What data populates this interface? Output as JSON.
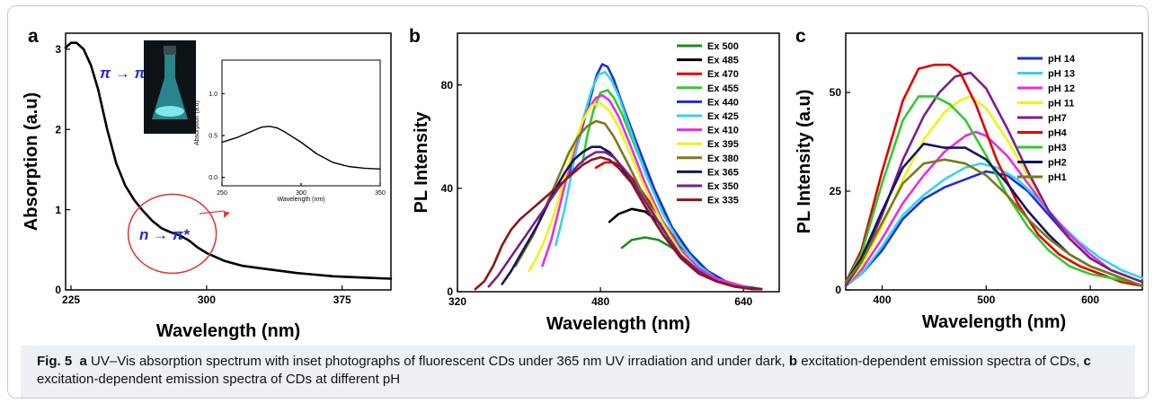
{
  "figure": {
    "caption": {
      "label": "Fig. 5",
      "a_letter": "a",
      "a_text": "UV–Vis absorption spectrum with inset photographs of fluorescent CDs under 365 nm UV irradiation and under dark,",
      "b_letter": "b",
      "b_text": "excitation-dependent emission spectra of CDs,",
      "c_letter": "c",
      "c_text": "excitation-dependent emission spectra of CDs at different pH"
    }
  },
  "chart_data": [
    {
      "panel": "a",
      "type": "line",
      "xlabel": "Wavelength (nm)",
      "ylabel": "Absorption (a.u)",
      "xlim": [
        222,
        402
      ],
      "ylim": [
        0,
        3.2
      ],
      "xticks": [
        225,
        300,
        375
      ],
      "yticks": [
        0,
        1,
        2,
        3
      ],
      "color": "#000000",
      "annotations": [
        "π → π*",
        "n → π*"
      ],
      "annotation_color": "#1f2bd0",
      "highlight_color": "#e23b3b",
      "series": [
        {
          "x": [
            222,
            225,
            228,
            232,
            236,
            240,
            245,
            250,
            255,
            260,
            265,
            270,
            275,
            280,
            285,
            290,
            295,
            300,
            310,
            320,
            330,
            340,
            350,
            360,
            370,
            380,
            390,
            402
          ],
          "y": [
            3.02,
            3.08,
            3.08,
            3.0,
            2.8,
            2.5,
            2.0,
            1.58,
            1.3,
            1.12,
            0.98,
            0.86,
            0.77,
            0.72,
            0.68,
            0.62,
            0.53,
            0.46,
            0.36,
            0.3,
            0.27,
            0.24,
            0.21,
            0.19,
            0.17,
            0.16,
            0.15,
            0.14
          ]
        }
      ],
      "inset": {
        "type": "line",
        "xlabel": "Wavelength (nm)",
        "ylabel": "Absorption (a.u)",
        "xlim": [
          250,
          350
        ],
        "ylim": [
          -0.1,
          1.4
        ],
        "xticks": [
          250,
          300,
          350
        ],
        "yticks": [
          0.0,
          0.5,
          1.0
        ],
        "series": [
          {
            "x": [
              250,
              260,
              270,
              275,
              280,
              285,
              290,
              300,
              310,
              320,
              330,
              340,
              350
            ],
            "y": [
              0.42,
              0.48,
              0.56,
              0.6,
              0.61,
              0.59,
              0.54,
              0.42,
              0.28,
              0.18,
              0.13,
              0.11,
              0.1
            ]
          }
        ]
      }
    },
    {
      "panel": "b",
      "type": "line",
      "xlabel": "Wavelength (nm)",
      "ylabel": "PL Intensity",
      "xlim": [
        320,
        680
      ],
      "ylim": [
        0,
        100
      ],
      "xticks": [
        320,
        480,
        640
      ],
      "yticks": [
        0,
        40,
        80
      ],
      "series": [
        {
          "name": "Ex 500",
          "color": "#1e8c1e",
          "x": [
            504,
            515,
            530,
            545,
            560,
            580,
            600,
            620,
            640,
            660
          ],
          "y": [
            17,
            20,
            21,
            20,
            17,
            12,
            7,
            4,
            2,
            1
          ]
        },
        {
          "name": "Ex 485",
          "color": "#000000",
          "x": [
            490,
            500,
            515,
            530,
            545,
            560,
            580,
            600,
            620,
            640,
            660
          ],
          "y": [
            27,
            30,
            32,
            31,
            27,
            21,
            14,
            8,
            4,
            2,
            1
          ]
        },
        {
          "name": "Ex 470",
          "color": "#e00000",
          "x": [
            475,
            485,
            495,
            505,
            520,
            540,
            560,
            580,
            600,
            620,
            640,
            660
          ],
          "y": [
            48,
            50,
            50,
            48,
            42,
            32,
            22,
            14,
            8,
            4,
            2,
            1
          ]
        },
        {
          "name": "Ex 455",
          "color": "#2ecc2e",
          "x": [
            460,
            465,
            472,
            480,
            488,
            495,
            505,
            520,
            540,
            560,
            580,
            600,
            620,
            640,
            660
          ],
          "y": [
            50,
            60,
            70,
            77,
            78,
            75,
            68,
            55,
            38,
            24,
            14,
            8,
            4,
            2,
            1
          ]
        },
        {
          "name": "Ex 440",
          "color": "#1c2fd6",
          "x": [
            445,
            452,
            460,
            468,
            476,
            482,
            488,
            495,
            505,
            520,
            540,
            560,
            580,
            600,
            620,
            640,
            660
          ],
          "y": [
            46,
            54,
            64,
            74,
            84,
            88,
            87,
            82,
            72,
            58,
            40,
            25,
            15,
            8,
            4,
            2,
            1
          ]
        },
        {
          "name": "Ex 425",
          "color": "#33d6e6",
          "x": [
            430,
            440,
            450,
            460,
            470,
            478,
            485,
            492,
            500,
            512,
            530,
            550,
            570,
            590,
            610,
            630,
            650,
            660
          ],
          "y": [
            18,
            32,
            50,
            66,
            78,
            84,
            85,
            82,
            76,
            64,
            46,
            30,
            18,
            10,
            5,
            3,
            1,
            1
          ]
        },
        {
          "name": "Ex 410",
          "color": "#e62ee0",
          "x": [
            415,
            425,
            435,
            445,
            455,
            465,
            475,
            482,
            490,
            500,
            512,
            530,
            550,
            570,
            590,
            610,
            630,
            650,
            660
          ],
          "y": [
            10,
            20,
            34,
            48,
            60,
            70,
            75,
            76,
            74,
            68,
            58,
            42,
            27,
            16,
            9,
            5,
            3,
            1,
            1
          ]
        },
        {
          "name": "Ex 395",
          "color": "#f2f214",
          "x": [
            400,
            410,
            420,
            430,
            440,
            450,
            460,
            470,
            480,
            490,
            500,
            515,
            530,
            550,
            570,
            590,
            610,
            630,
            650,
            660
          ],
          "y": [
            8,
            14,
            22,
            32,
            44,
            56,
            66,
            72,
            73,
            70,
            64,
            52,
            40,
            26,
            15,
            8,
            4,
            2,
            1,
            1
          ]
        },
        {
          "name": "Ex 380",
          "color": "#7a7a18",
          "x": [
            385,
            395,
            405,
            415,
            425,
            435,
            445,
            455,
            465,
            475,
            485,
            495,
            510,
            530,
            550,
            570,
            590,
            610,
            630,
            650,
            660
          ],
          "y": [
            10,
            16,
            22,
            30,
            38,
            46,
            54,
            60,
            64,
            66,
            65,
            60,
            50,
            36,
            24,
            14,
            8,
            4,
            2,
            1,
            1
          ]
        },
        {
          "name": "Ex 365",
          "color": "#14145e",
          "x": [
            370,
            380,
            390,
            400,
            410,
            420,
            430,
            440,
            450,
            460,
            470,
            480,
            490,
            500,
            515,
            530,
            550,
            570,
            590,
            610,
            630,
            650,
            660
          ],
          "y": [
            3,
            8,
            14,
            20,
            26,
            33,
            40,
            46,
            51,
            54,
            56,
            56,
            54,
            50,
            42,
            33,
            22,
            13,
            7,
            4,
            2,
            1,
            1
          ]
        },
        {
          "name": "Ex 350",
          "color": "#7a1f8c",
          "x": [
            355,
            365,
            375,
            385,
            395,
            405,
            415,
            425,
            435,
            445,
            455,
            465,
            475,
            485,
            495,
            510,
            530,
            550,
            570,
            590,
            610,
            630,
            650,
            660
          ],
          "y": [
            2,
            6,
            11,
            16,
            21,
            26,
            31,
            36,
            41,
            45,
            49,
            52,
            54,
            54,
            52,
            46,
            35,
            24,
            14,
            8,
            4,
            2,
            1,
            1
          ]
        },
        {
          "name": "Ex 335",
          "color": "#8a1818",
          "x": [
            340,
            350,
            360,
            370,
            380,
            390,
            400,
            410,
            420,
            430,
            440,
            450,
            460,
            470,
            480,
            490,
            500,
            515,
            530,
            550,
            570,
            590,
            610,
            630,
            650,
            660
          ],
          "y": [
            1,
            4,
            10,
            18,
            24,
            28,
            31,
            34,
            37,
            40,
            43,
            46,
            49,
            51,
            52,
            51,
            48,
            42,
            33,
            22,
            13,
            7,
            4,
            2,
            1,
            1
          ]
        }
      ]
    },
    {
      "panel": "c",
      "type": "line",
      "xlabel": "Wavelength (nm)",
      "ylabel": "PL Intensity (a.u)",
      "xlim": [
        365,
        650
      ],
      "ylim": [
        0,
        65
      ],
      "xticks": [
        400,
        500,
        600
      ],
      "yticks": [
        0,
        25,
        50
      ],
      "series": [
        {
          "name": "pH 14",
          "color": "#1c2fd6",
          "x": [
            365,
            380,
            400,
            420,
            440,
            460,
            480,
            500,
            520,
            540,
            560,
            580,
            600,
            620,
            640,
            650
          ],
          "y": [
            1,
            4,
            10,
            18,
            23,
            26,
            28,
            30,
            29,
            25,
            19,
            13,
            8,
            5,
            3,
            2
          ]
        },
        {
          "name": "pH 13",
          "color": "#33d6e6",
          "x": [
            365,
            380,
            400,
            420,
            440,
            460,
            480,
            495,
            510,
            530,
            550,
            570,
            590,
            610,
            630,
            650
          ],
          "y": [
            1,
            4,
            11,
            19,
            24,
            28,
            31,
            32,
            31,
            28,
            23,
            17,
            12,
            8,
            5,
            3
          ]
        },
        {
          "name": "pH 12",
          "color": "#e62ee0",
          "x": [
            365,
            380,
            400,
            420,
            440,
            460,
            480,
            490,
            500,
            520,
            540,
            560,
            580,
            600,
            620,
            640,
            650
          ],
          "y": [
            1,
            5,
            13,
            22,
            29,
            35,
            39,
            40,
            39,
            34,
            27,
            20,
            14,
            9,
            5,
            3,
            2
          ]
        },
        {
          "name": "pH 11",
          "color": "#f2f214",
          "x": [
            365,
            380,
            400,
            420,
            440,
            460,
            475,
            485,
            500,
            520,
            540,
            560,
            580,
            600,
            620,
            640,
            650
          ],
          "y": [
            1,
            6,
            16,
            28,
            38,
            45,
            48,
            49,
            46,
            38,
            29,
            20,
            13,
            8,
            5,
            3,
            2
          ]
        },
        {
          "name": "pH7",
          "color": "#7a1f8c",
          "x": [
            365,
            380,
            400,
            420,
            440,
            455,
            470,
            485,
            500,
            520,
            540,
            560,
            580,
            600,
            620,
            640,
            650
          ],
          "y": [
            1,
            7,
            19,
            33,
            44,
            50,
            54,
            55,
            51,
            41,
            30,
            20,
            13,
            8,
            5,
            3,
            2
          ]
        },
        {
          "name": "pH4",
          "color": "#e00000",
          "x": [
            365,
            380,
            400,
            420,
            435,
            450,
            465,
            475,
            490,
            510,
            530,
            550,
            570,
            590,
            610,
            630,
            650
          ],
          "y": [
            2,
            10,
            30,
            48,
            56,
            57,
            57,
            55,
            47,
            33,
            22,
            14,
            9,
            6,
            4,
            2,
            1
          ]
        },
        {
          "name": "pH3",
          "color": "#2ecc2e",
          "x": [
            365,
            380,
            400,
            420,
            435,
            450,
            465,
            480,
            500,
            520,
            540,
            560,
            580,
            600,
            620,
            640,
            650
          ],
          "y": [
            2,
            9,
            27,
            43,
            49,
            49,
            47,
            43,
            34,
            24,
            16,
            10,
            6,
            4,
            3,
            2,
            1
          ]
        },
        {
          "name": "pH2",
          "color": "#14145e",
          "x": [
            365,
            380,
            400,
            420,
            440,
            460,
            480,
            500,
            520,
            540,
            560,
            580,
            600,
            620,
            640,
            650
          ],
          "y": [
            2,
            8,
            20,
            31,
            37,
            36,
            36,
            33,
            27,
            20,
            14,
            9,
            6,
            4,
            2,
            1
          ]
        },
        {
          "name": "pH1",
          "color": "#7a7a18",
          "x": [
            365,
            380,
            400,
            420,
            440,
            460,
            480,
            500,
            520,
            540,
            560,
            580,
            600,
            620,
            640,
            650
          ],
          "y": [
            2,
            7,
            17,
            27,
            32,
            33,
            32,
            29,
            24,
            18,
            13,
            9,
            6,
            4,
            2,
            1
          ]
        }
      ]
    }
  ]
}
